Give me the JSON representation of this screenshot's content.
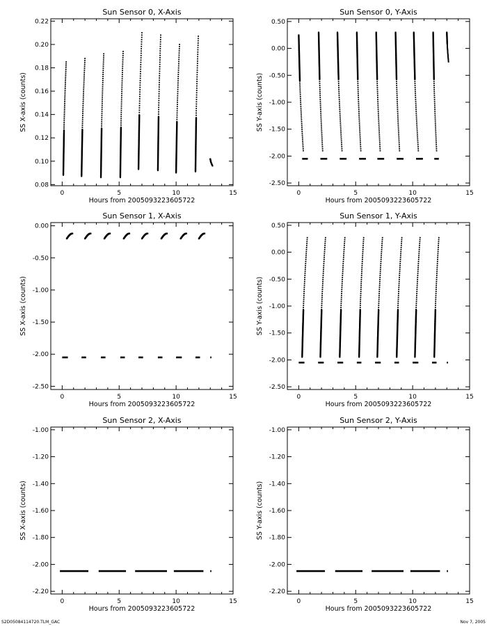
{
  "footer": {
    "left": "S2D05084114720.TLM_GAC",
    "right": "Nov  7, 2005"
  },
  "chart_data": [
    {
      "type": "scatter",
      "title": "Sun Sensor 0, X-Axis",
      "xlabel": "Hours from 2005093223605722",
      "ylabel": "SS X-axis (counts)",
      "xlim": [
        -1,
        15
      ],
      "ylim": [
        0.079,
        0.222
      ],
      "xticks": [
        0,
        5,
        10,
        15
      ],
      "yticks": [
        0.08,
        0.1,
        0.12,
        0.14,
        0.16,
        0.18,
        0.2,
        0.22
      ],
      "ytick_labels": [
        "0.08",
        "0.10",
        "0.12",
        "0.14",
        "0.16",
        "0.18",
        "0.20",
        "0.22"
      ],
      "segments": [
        {
          "x": [
            0.1,
            0.35
          ],
          "y": [
            0.088,
            0.185
          ]
        },
        {
          "x": [
            1.7,
            2.0
          ],
          "y": [
            0.087,
            0.188
          ]
        },
        {
          "x": [
            3.4,
            3.65
          ],
          "y": [
            0.086,
            0.192
          ]
        },
        {
          "x": [
            5.1,
            5.35
          ],
          "y": [
            0.086,
            0.194
          ]
        },
        {
          "x": [
            6.7,
            7.0
          ],
          "y": [
            0.093,
            0.21
          ]
        },
        {
          "x": [
            8.4,
            8.65
          ],
          "y": [
            0.092,
            0.208
          ]
        },
        {
          "x": [
            10.0,
            10.3
          ],
          "y": [
            0.09,
            0.2
          ]
        },
        {
          "x": [
            11.7,
            11.95
          ],
          "y": [
            0.091,
            0.207
          ]
        },
        {
          "x": [
            13.0,
            13.2
          ],
          "y": [
            0.102,
            0.096
          ]
        }
      ]
    },
    {
      "type": "scatter",
      "title": "Sun Sensor 0, Y-Axis",
      "xlabel": "Hours from 2005093223605722",
      "ylabel": "SS Y-axis (counts)",
      "xlim": [
        -1,
        15
      ],
      "ylim": [
        -2.55,
        0.55
      ],
      "xticks": [
        0,
        5,
        10,
        15
      ],
      "yticks": [
        -2.5,
        -2.0,
        -1.5,
        -1.0,
        -0.5,
        0.0,
        0.5
      ],
      "ytick_labels": [
        "-2.50",
        "-2.00",
        "-1.50",
        "-1.00",
        "-0.50",
        "0.00",
        "0.50"
      ],
      "segments": [
        {
          "x": [
            0.0,
            0.4
          ],
          "y": [
            0.25,
            -1.9
          ]
        },
        {
          "x": [
            1.75,
            2.1
          ],
          "y": [
            0.3,
            -1.9
          ]
        },
        {
          "x": [
            3.4,
            3.8
          ],
          "y": [
            0.3,
            -1.9
          ]
        },
        {
          "x": [
            5.1,
            5.45
          ],
          "y": [
            0.3,
            -1.9
          ]
        },
        {
          "x": [
            6.8,
            7.15
          ],
          "y": [
            0.3,
            -1.9
          ]
        },
        {
          "x": [
            8.5,
            8.85
          ],
          "y": [
            0.3,
            -1.9
          ]
        },
        {
          "x": [
            10.1,
            10.5
          ],
          "y": [
            0.3,
            -1.9
          ]
        },
        {
          "x": [
            11.8,
            12.1
          ],
          "y": [
            0.3,
            -1.9
          ]
        },
        {
          "x": [
            13.0,
            13.15
          ],
          "y": [
            0.3,
            -0.25
          ]
        }
      ],
      "baseline": {
        "y": -2.05,
        "x_ranges": [
          [
            0.3,
            0.8
          ],
          [
            1.9,
            2.5
          ],
          [
            3.6,
            4.2
          ],
          [
            5.3,
            5.9
          ],
          [
            6.9,
            7.5
          ],
          [
            8.6,
            9.2
          ],
          [
            10.3,
            10.9
          ],
          [
            11.9,
            12.3
          ]
        ]
      }
    },
    {
      "type": "scatter",
      "title": "Sun Sensor 1, X-Axis",
      "xlabel": "Hours from 2005093223605722",
      "ylabel": "SS X-axis (counts)",
      "xlim": [
        -1,
        15
      ],
      "ylim": [
        -2.55,
        0.05
      ],
      "xticks": [
        0,
        5,
        10,
        15
      ],
      "yticks": [
        -2.5,
        -2.0,
        -1.5,
        -1.0,
        -0.5,
        0.0
      ],
      "ytick_labels": [
        "-2.50",
        "-2.00",
        "-1.50",
        "-1.00",
        "-0.50",
        "0.00"
      ],
      "arcs": [
        {
          "x0": 0.4,
          "x1": 0.9
        },
        {
          "x0": 2.0,
          "x1": 2.5
        },
        {
          "x0": 3.7,
          "x1": 4.2
        },
        {
          "x0": 5.4,
          "x1": 5.9
        },
        {
          "x0": 7.0,
          "x1": 7.5
        },
        {
          "x0": 8.7,
          "x1": 9.2
        },
        {
          "x0": 10.4,
          "x1": 10.9
        },
        {
          "x0": 12.0,
          "x1": 12.5
        }
      ],
      "arc_y": [
        -0.2,
        -0.12
      ],
      "baseline": {
        "y": -2.05,
        "x_ranges": [
          [
            0.0,
            0.5
          ],
          [
            1.7,
            2.1
          ],
          [
            3.4,
            3.8
          ],
          [
            5.1,
            5.5
          ],
          [
            6.7,
            7.1
          ],
          [
            8.4,
            8.8
          ],
          [
            10.0,
            10.5
          ],
          [
            11.7,
            12.1
          ],
          [
            13.0,
            13.1
          ]
        ]
      }
    },
    {
      "type": "scatter",
      "title": "Sun Sensor 1, Y-Axis",
      "xlabel": "Hours from 2005093223605722",
      "ylabel": "SS Y-axis (counts)",
      "xlim": [
        -1,
        15
      ],
      "ylim": [
        -2.55,
        0.55
      ],
      "xticks": [
        0,
        5,
        10,
        15
      ],
      "yticks": [
        -2.5,
        -2.0,
        -1.5,
        -1.0,
        -0.5,
        0.0,
        0.5
      ],
      "ytick_labels": [
        "-2.50",
        "-2.00",
        "-1.50",
        "-1.00",
        "-0.50",
        "0.00",
        "0.50"
      ],
      "segments": [
        {
          "x": [
            0.3,
            0.75
          ],
          "y": [
            -1.95,
            0.27
          ]
        },
        {
          "x": [
            1.9,
            2.35
          ],
          "y": [
            -1.95,
            0.27
          ]
        },
        {
          "x": [
            3.6,
            4.05
          ],
          "y": [
            -1.95,
            0.27
          ]
        },
        {
          "x": [
            5.3,
            5.7
          ],
          "y": [
            -1.95,
            0.27
          ]
        },
        {
          "x": [
            6.9,
            7.35
          ],
          "y": [
            -1.95,
            0.27
          ]
        },
        {
          "x": [
            8.6,
            9.05
          ],
          "y": [
            -1.95,
            0.27
          ]
        },
        {
          "x": [
            10.2,
            10.65
          ],
          "y": [
            -1.95,
            0.27
          ]
        },
        {
          "x": [
            11.9,
            12.3
          ],
          "y": [
            -1.95,
            0.27
          ]
        }
      ],
      "baseline": {
        "y": -2.05,
        "x_ranges": [
          [
            0.0,
            0.5
          ],
          [
            1.7,
            2.2
          ],
          [
            3.4,
            3.9
          ],
          [
            5.1,
            5.5
          ],
          [
            6.7,
            7.2
          ],
          [
            8.4,
            8.8
          ],
          [
            10.0,
            10.5
          ],
          [
            11.7,
            12.1
          ],
          [
            13.0,
            13.1
          ]
        ]
      }
    },
    {
      "type": "scatter",
      "title": "Sun Sensor 2, X-Axis",
      "xlabel": "Hours from 2005093223605722",
      "ylabel": "SS X-axis (counts)",
      "xlim": [
        -1,
        15
      ],
      "ylim": [
        -2.22,
        -0.98
      ],
      "xticks": [
        0,
        5,
        10,
        15
      ],
      "yticks": [
        -2.2,
        -2.0,
        -1.8,
        -1.6,
        -1.4,
        -1.2,
        -1.0
      ],
      "ytick_labels": [
        "-2.20",
        "-2.00",
        "-1.80",
        "-1.60",
        "-1.40",
        "-1.20",
        "-1.00"
      ],
      "baseline": {
        "y": -2.05,
        "x_ranges": [
          [
            -0.2,
            2.3
          ],
          [
            3.2,
            5.6
          ],
          [
            6.4,
            9.2
          ],
          [
            9.8,
            12.4
          ],
          [
            13.0,
            13.1
          ]
        ]
      }
    },
    {
      "type": "scatter",
      "title": "Sun Sensor 2, Y-Axis",
      "xlabel": "Hours from 2005093223605722",
      "ylabel": "SS Y-axis (counts)",
      "xlim": [
        -1,
        15
      ],
      "ylim": [
        -2.22,
        -0.98
      ],
      "xticks": [
        0,
        5,
        10,
        15
      ],
      "yticks": [
        -2.2,
        -2.0,
        -1.8,
        -1.6,
        -1.4,
        -1.2,
        -1.0
      ],
      "ytick_labels": [
        "-2.20",
        "-2.00",
        "-1.80",
        "-1.60",
        "-1.40",
        "-1.20",
        "-1.00"
      ],
      "baseline": {
        "y": -2.05,
        "x_ranges": [
          [
            -0.2,
            2.3
          ],
          [
            3.2,
            5.6
          ],
          [
            6.4,
            9.2
          ],
          [
            9.8,
            12.4
          ],
          [
            13.0,
            13.1
          ]
        ]
      }
    }
  ]
}
